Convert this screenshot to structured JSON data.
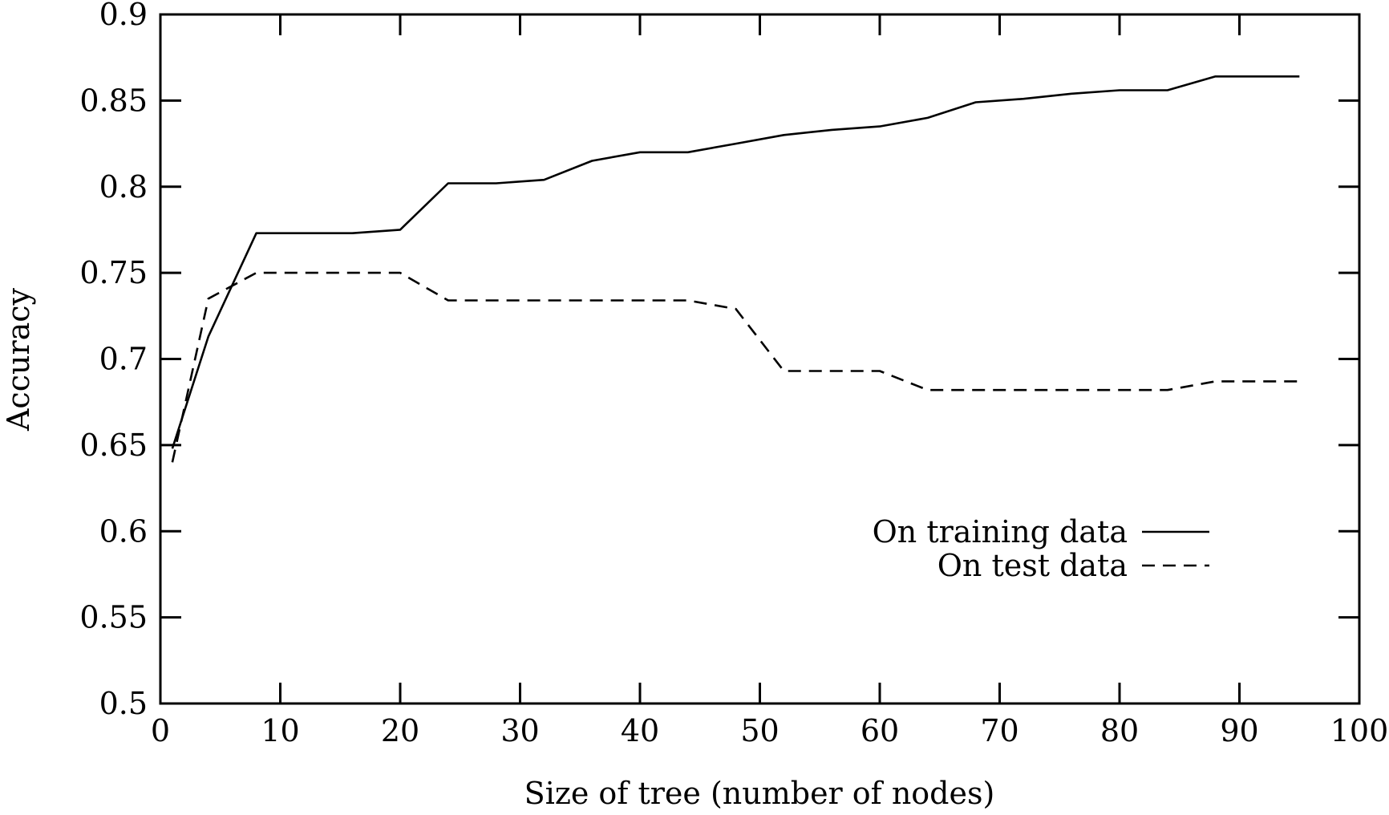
{
  "chart_data": {
    "type": "line",
    "title": "",
    "xlabel": "Size of tree (number of nodes)",
    "ylabel": "Accuracy",
    "xlim": [
      0,
      100
    ],
    "ylim": [
      0.5,
      0.9
    ],
    "x_ticks": [
      0,
      10,
      20,
      30,
      40,
      50,
      60,
      70,
      80,
      90,
      100
    ],
    "x_tick_labels": [
      "0",
      "10",
      "20",
      "30",
      "40",
      "50",
      "60",
      "70",
      "80",
      "90",
      "100"
    ],
    "y_ticks": [
      0.5,
      0.55,
      0.6,
      0.65,
      0.7,
      0.75,
      0.8,
      0.85,
      0.9
    ],
    "y_tick_labels": [
      "0.5",
      "0.55",
      "0.6",
      "0.65",
      "0.7",
      "0.75",
      "0.8",
      "0.85",
      "0.9"
    ],
    "grid": false,
    "legend_position": "right",
    "series": [
      {
        "name": "On training data",
        "style": "solid",
        "color": "#000000",
        "x": [
          1,
          4,
          8,
          12,
          16,
          20,
          24,
          28,
          32,
          36,
          40,
          44,
          48,
          52,
          56,
          60,
          64,
          68,
          72,
          76,
          80,
          84,
          88,
          92,
          95
        ],
        "y": [
          0.648,
          0.713,
          0.773,
          0.773,
          0.773,
          0.775,
          0.802,
          0.802,
          0.804,
          0.815,
          0.82,
          0.82,
          0.825,
          0.83,
          0.833,
          0.835,
          0.84,
          0.849,
          0.851,
          0.854,
          0.856,
          0.856,
          0.864,
          0.864,
          0.864
        ]
      },
      {
        "name": "On test data",
        "style": "dashed",
        "color": "#000000",
        "x": [
          1,
          4,
          8,
          12,
          16,
          20,
          24,
          28,
          32,
          36,
          40,
          44,
          48,
          52,
          56,
          60,
          64,
          68,
          72,
          76,
          80,
          84,
          88,
          92,
          95
        ],
        "y": [
          0.64,
          0.735,
          0.75,
          0.75,
          0.75,
          0.75,
          0.734,
          0.734,
          0.734,
          0.734,
          0.734,
          0.734,
          0.729,
          0.693,
          0.693,
          0.693,
          0.682,
          0.682,
          0.682,
          0.682,
          0.682,
          0.682,
          0.687,
          0.687,
          0.687
        ]
      }
    ]
  }
}
